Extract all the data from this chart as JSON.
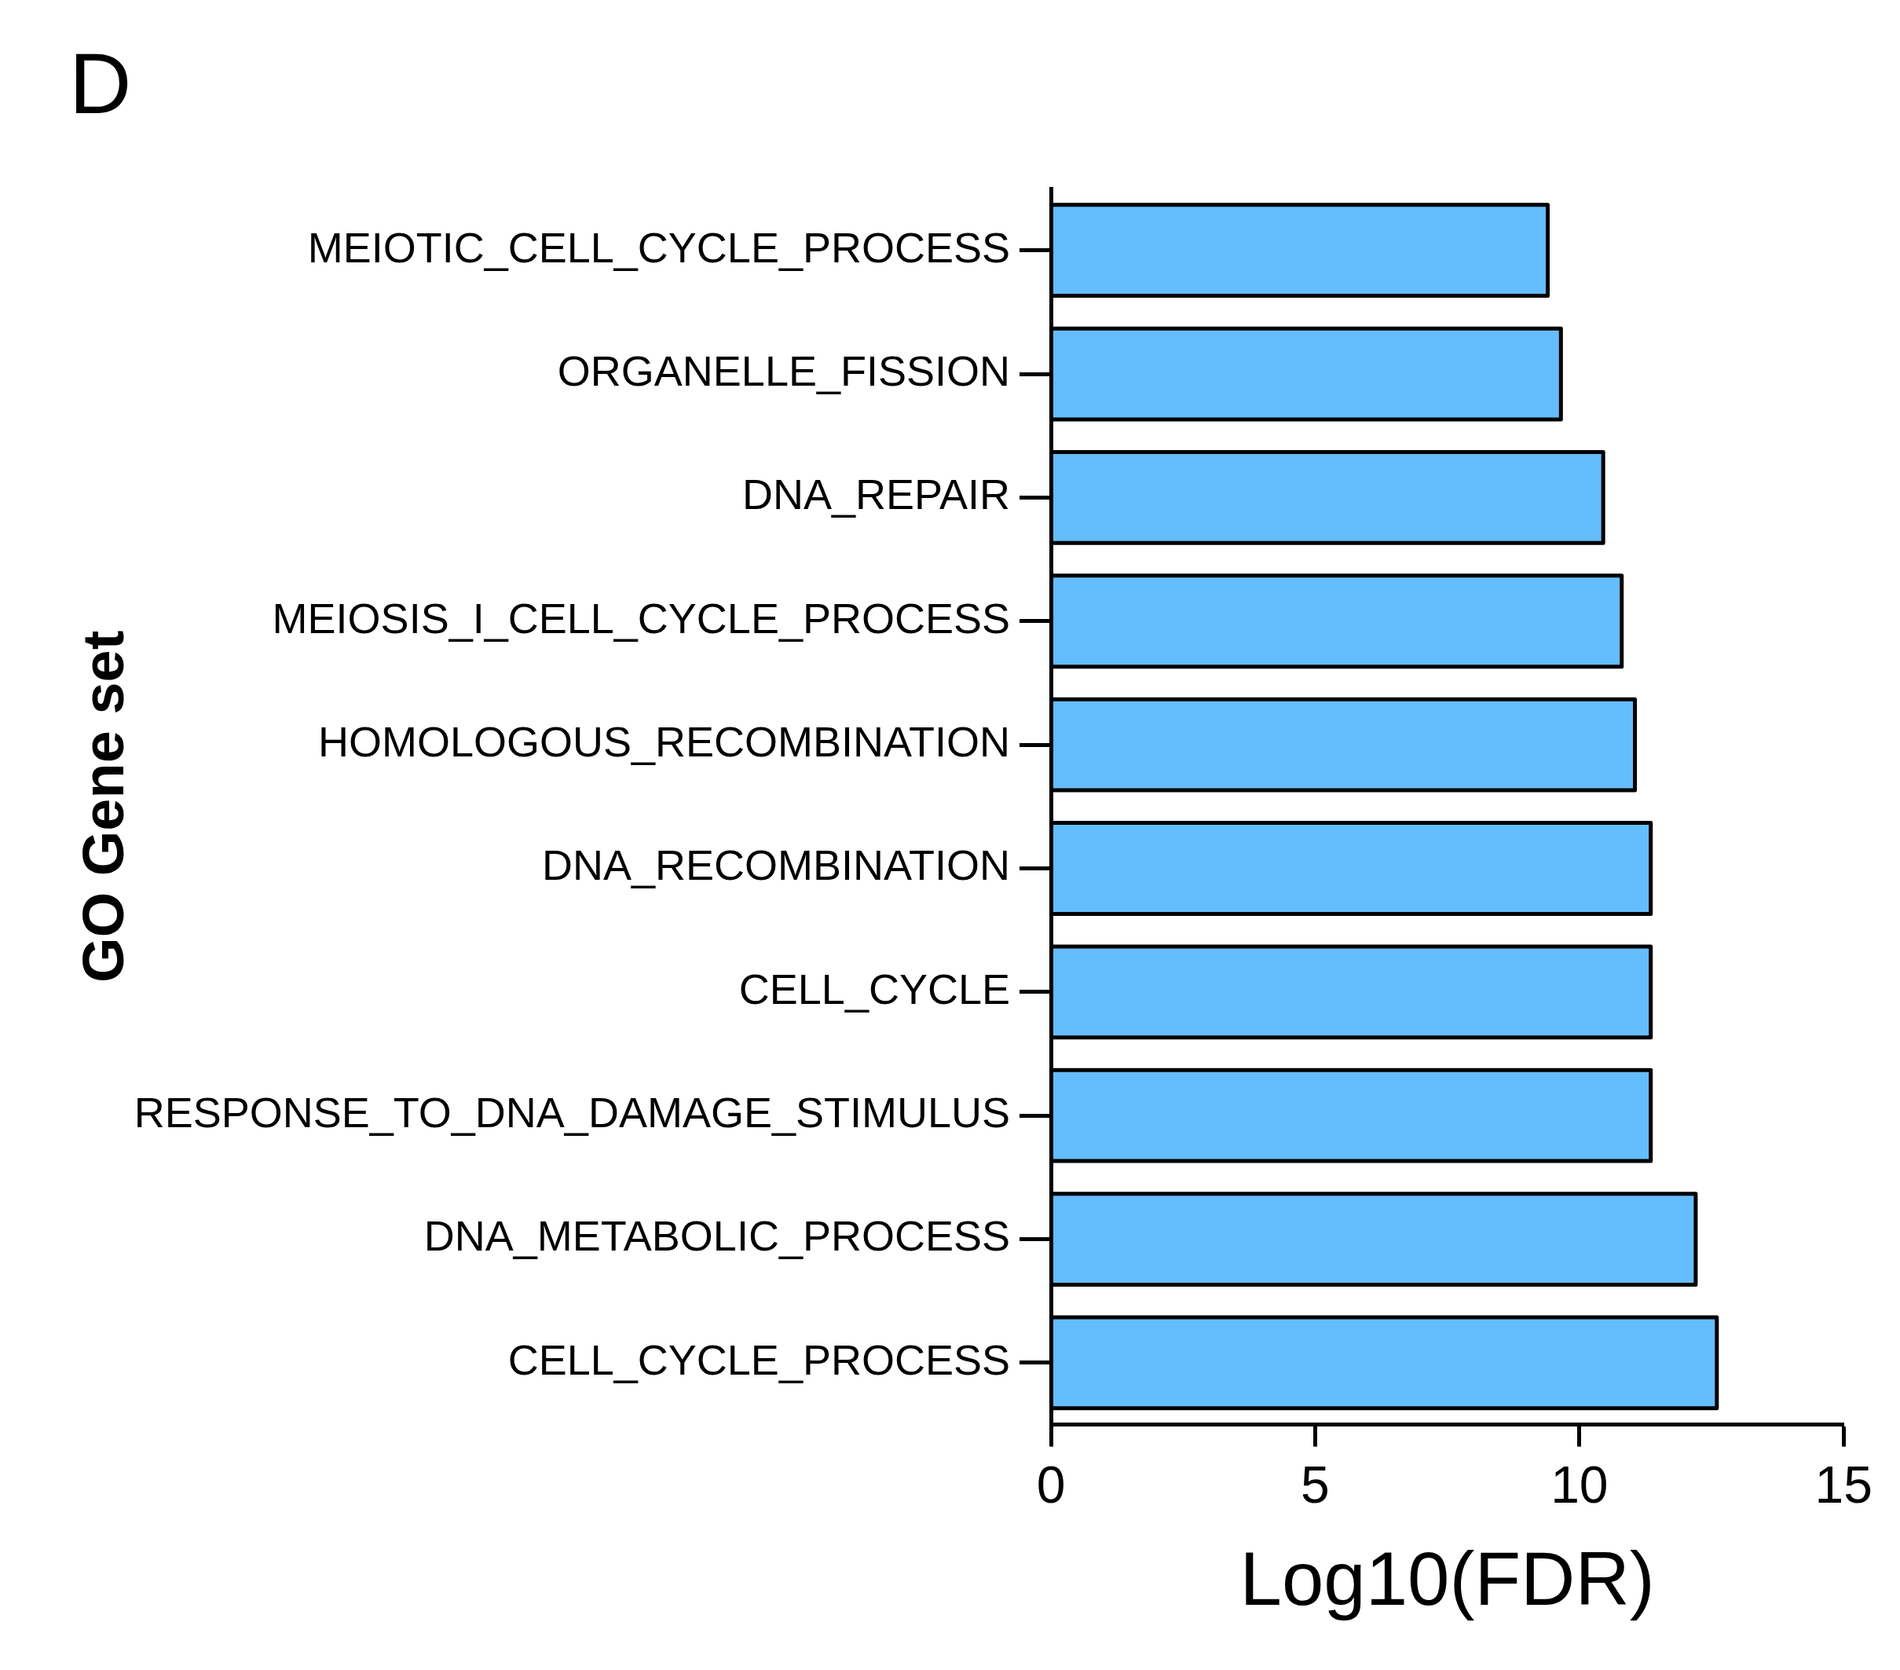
{
  "chart_data": {
    "type": "bar",
    "orientation": "horizontal",
    "title": "D",
    "xlabel": "Log10(FDR)",
    "ylabel": "GO Gene set",
    "categories": [
      "MEIOTIC_CELL_CYCLE_PROCESS",
      "ORGANELLE_FISSION",
      "DNA_REPAIR",
      "MEIOSIS_I_CELL_CYCLE_PROCESS",
      "HOMOLOGOUS_RECOMBINATION",
      "DNA_RECOMBINATION",
      "CELL_CYCLE",
      "RESPONSE_TO_DNA_DAMAGE_STIMULUS",
      "DNA_METABOLIC_PROCESS",
      "CELL_CYCLE_PROCESS"
    ],
    "values": [
      9.4,
      9.65,
      10.45,
      10.8,
      11.05,
      11.35,
      11.35,
      11.35,
      12.2,
      12.6
    ],
    "color": "#64bdfc",
    "xlim": [
      0,
      15
    ],
    "xticks": [
      0,
      5,
      10,
      15
    ],
    "grid": false,
    "legend": false
  }
}
